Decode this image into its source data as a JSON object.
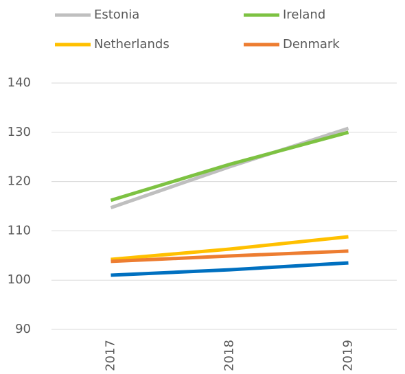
{
  "chart_data": {
    "type": "line",
    "categories": [
      "2017",
      "2018",
      "2019"
    ],
    "series": [
      {
        "name": "Estonia",
        "color": "#bfbfbf",
        "values": [
          114.7,
          123.0,
          130.8
        ]
      },
      {
        "name": "Ireland",
        "color": "#7dc242",
        "values": [
          116.2,
          123.5,
          130.0
        ]
      },
      {
        "name": "Netherlands",
        "color": "#ffc000",
        "values": [
          104.2,
          106.3,
          108.8
        ]
      },
      {
        "name": "Denmark",
        "color": "#ed7d31",
        "values": [
          103.8,
          104.9,
          105.9
        ]
      },
      {
        "color": "#0070c0",
        "values": [
          101.0,
          102.1,
          103.5
        ]
      }
    ],
    "ylim": [
      90,
      140
    ],
    "yticks": [
      90,
      100,
      110,
      120,
      130,
      140
    ],
    "grid": true
  }
}
